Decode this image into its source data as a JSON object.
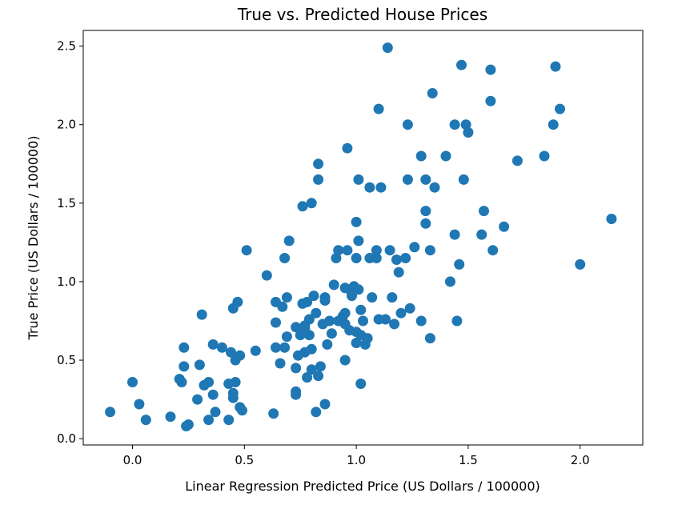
{
  "chart_data": {
    "type": "scatter",
    "title": "True vs. Predicted House Prices",
    "xlabel": "Linear Regression Predicted Price (US Dollars / 100000)",
    "ylabel": "True Price (US Dollars / 100000)",
    "xlim": [
      -0.22,
      2.28
    ],
    "ylim": [
      -0.04,
      2.6
    ],
    "xticks": [
      "0.0",
      "0.5",
      "1.0",
      "1.5",
      "2.0"
    ],
    "yticks": [
      "0.0",
      "0.5",
      "1.0",
      "1.5",
      "2.0",
      "2.5"
    ],
    "grid": false,
    "color": "#1f77b4",
    "points": [
      [
        -0.1,
        0.17
      ],
      [
        0.0,
        0.36
      ],
      [
        0.03,
        0.22
      ],
      [
        0.06,
        0.12
      ],
      [
        0.17,
        0.14
      ],
      [
        0.21,
        0.38
      ],
      [
        0.22,
        0.36
      ],
      [
        0.23,
        0.58
      ],
      [
        0.23,
        0.46
      ],
      [
        0.24,
        0.08
      ],
      [
        0.25,
        0.09
      ],
      [
        0.29,
        0.25
      ],
      [
        0.3,
        0.47
      ],
      [
        0.31,
        0.79
      ],
      [
        0.32,
        0.34
      ],
      [
        0.34,
        0.36
      ],
      [
        0.34,
        0.12
      ],
      [
        0.36,
        0.28
      ],
      [
        0.36,
        0.6
      ],
      [
        0.37,
        0.17
      ],
      [
        0.4,
        0.58
      ],
      [
        0.43,
        0.35
      ],
      [
        0.43,
        0.12
      ],
      [
        0.44,
        0.55
      ],
      [
        0.45,
        0.29
      ],
      [
        0.45,
        0.26
      ],
      [
        0.45,
        0.83
      ],
      [
        0.46,
        0.36
      ],
      [
        0.46,
        0.5
      ],
      [
        0.47,
        0.87
      ],
      [
        0.48,
        0.2
      ],
      [
        0.48,
        0.53
      ],
      [
        0.49,
        0.18
      ],
      [
        0.51,
        1.2
      ],
      [
        0.55,
        0.56
      ],
      [
        0.6,
        1.04
      ],
      [
        0.63,
        0.16
      ],
      [
        0.64,
        0.87
      ],
      [
        0.64,
        0.74
      ],
      [
        0.64,
        0.58
      ],
      [
        0.66,
        0.48
      ],
      [
        0.67,
        0.84
      ],
      [
        0.68,
        1.15
      ],
      [
        0.68,
        0.58
      ],
      [
        0.69,
        0.9
      ],
      [
        0.69,
        0.65
      ],
      [
        0.7,
        1.26
      ],
      [
        0.73,
        0.71
      ],
      [
        0.73,
        0.45
      ],
      [
        0.73,
        0.3
      ],
      [
        0.73,
        0.28
      ],
      [
        0.74,
        0.53
      ],
      [
        0.75,
        0.66
      ],
      [
        0.76,
        1.48
      ],
      [
        0.76,
        0.86
      ],
      [
        0.77,
        0.7
      ],
      [
        0.77,
        0.55
      ],
      [
        0.77,
        0.72
      ],
      [
        0.78,
        0.39
      ],
      [
        0.78,
        0.87
      ],
      [
        0.79,
        0.66
      ],
      [
        0.79,
        0.76
      ],
      [
        0.8,
        1.5
      ],
      [
        0.8,
        0.44
      ],
      [
        0.8,
        0.57
      ],
      [
        0.81,
        0.91
      ],
      [
        0.82,
        0.8
      ],
      [
        0.82,
        0.17
      ],
      [
        0.83,
        1.75
      ],
      [
        0.83,
        1.65
      ],
      [
        0.83,
        0.4
      ],
      [
        0.84,
        0.46
      ],
      [
        0.85,
        0.73
      ],
      [
        0.86,
        0.22
      ],
      [
        0.86,
        0.9
      ],
      [
        0.86,
        0.88
      ],
      [
        0.87,
        0.6
      ],
      [
        0.88,
        0.75
      ],
      [
        0.89,
        0.67
      ],
      [
        0.9,
        0.98
      ],
      [
        0.91,
        1.15
      ],
      [
        0.92,
        1.2
      ],
      [
        0.92,
        0.75
      ],
      [
        0.94,
        0.78
      ],
      [
        0.95,
        0.5
      ],
      [
        0.95,
        0.96
      ],
      [
        0.95,
        0.8
      ],
      [
        0.95,
        0.73
      ],
      [
        0.96,
        1.85
      ],
      [
        0.96,
        1.2
      ],
      [
        0.97,
        0.95
      ],
      [
        0.97,
        0.69
      ],
      [
        0.98,
        0.91
      ],
      [
        0.99,
        0.97
      ],
      [
        1.0,
        1.38
      ],
      [
        1.0,
        1.15
      ],
      [
        1.0,
        0.68
      ],
      [
        1.0,
        0.61
      ],
      [
        1.01,
        1.65
      ],
      [
        1.01,
        1.26
      ],
      [
        1.01,
        0.95
      ],
      [
        1.02,
        0.35
      ],
      [
        1.02,
        0.66
      ],
      [
        1.02,
        0.82
      ],
      [
        1.03,
        0.75
      ],
      [
        1.04,
        0.6
      ],
      [
        1.05,
        0.64
      ],
      [
        1.06,
        1.6
      ],
      [
        1.06,
        1.15
      ],
      [
        1.07,
        0.9
      ],
      [
        1.09,
        1.2
      ],
      [
        1.09,
        1.15
      ],
      [
        1.1,
        2.1
      ],
      [
        1.1,
        0.76
      ],
      [
        1.11,
        1.6
      ],
      [
        1.13,
        0.76
      ],
      [
        1.14,
        2.49
      ],
      [
        1.15,
        1.2
      ],
      [
        1.16,
        0.9
      ],
      [
        1.17,
        0.73
      ],
      [
        1.18,
        1.14
      ],
      [
        1.19,
        1.06
      ],
      [
        1.2,
        0.8
      ],
      [
        1.22,
        1.15
      ],
      [
        1.23,
        2.0
      ],
      [
        1.23,
        1.65
      ],
      [
        1.24,
        0.83
      ],
      [
        1.26,
        1.22
      ],
      [
        1.29,
        1.8
      ],
      [
        1.29,
        0.75
      ],
      [
        1.31,
        1.45
      ],
      [
        1.31,
        1.37
      ],
      [
        1.31,
        1.65
      ],
      [
        1.33,
        1.2
      ],
      [
        1.33,
        0.64
      ],
      [
        1.34,
        2.2
      ],
      [
        1.35,
        1.6
      ],
      [
        1.4,
        1.8
      ],
      [
        1.42,
        1.0
      ],
      [
        1.44,
        2.0
      ],
      [
        1.44,
        1.3
      ],
      [
        1.45,
        0.75
      ],
      [
        1.46,
        1.11
      ],
      [
        1.47,
        2.38
      ],
      [
        1.48,
        1.65
      ],
      [
        1.49,
        2.0
      ],
      [
        1.5,
        1.95
      ],
      [
        1.56,
        1.3
      ],
      [
        1.57,
        1.45
      ],
      [
        1.6,
        2.35
      ],
      [
        1.6,
        2.15
      ],
      [
        1.61,
        1.2
      ],
      [
        1.66,
        1.35
      ],
      [
        1.72,
        1.77
      ],
      [
        1.84,
        1.8
      ],
      [
        1.88,
        2.0
      ],
      [
        1.89,
        2.37
      ],
      [
        1.91,
        2.1
      ],
      [
        2.0,
        1.11
      ],
      [
        2.14,
        1.4
      ]
    ]
  }
}
